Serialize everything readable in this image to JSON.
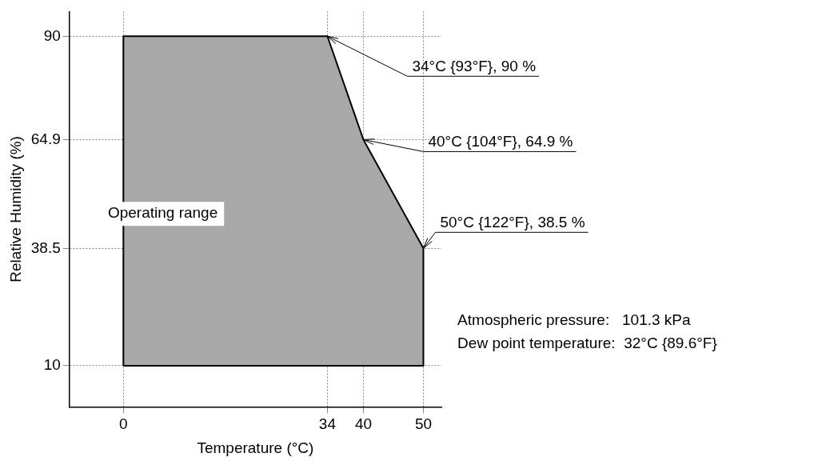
{
  "chart_data": {
    "type": "area",
    "xlabel": "Temperature (°C)",
    "ylabel": "Relative Humidity (%)",
    "series": [
      {
        "x": [
          0,
          0,
          34,
          40,
          50,
          50,
          0
        ],
        "values": [
          10,
          90,
          90,
          64.9,
          38.5,
          10,
          10
        ],
        "color": "#a8a8a8"
      }
    ],
    "xlim": [
      -9,
      53
    ],
    "ylim": [
      0,
      96
    ],
    "xticks": [
      0,
      34,
      40,
      50
    ],
    "yticks": [
      10,
      38.5,
      64.9,
      90
    ],
    "grid": true,
    "annotations": [
      {
        "text": "34°C {93°F}, 90 %",
        "x": 34,
        "y": 90
      },
      {
        "text": "40°C {104°F}, 64.9 %",
        "x": 40,
        "y": 64.9
      },
      {
        "text": "50°C {122°F}, 38.5 %",
        "x": 50,
        "y": 38.5
      },
      "Operating range",
      "Atmospheric pressure:   101.3 kPa",
      "Dew point temperature:  32°C {89.6°F}"
    ]
  }
}
